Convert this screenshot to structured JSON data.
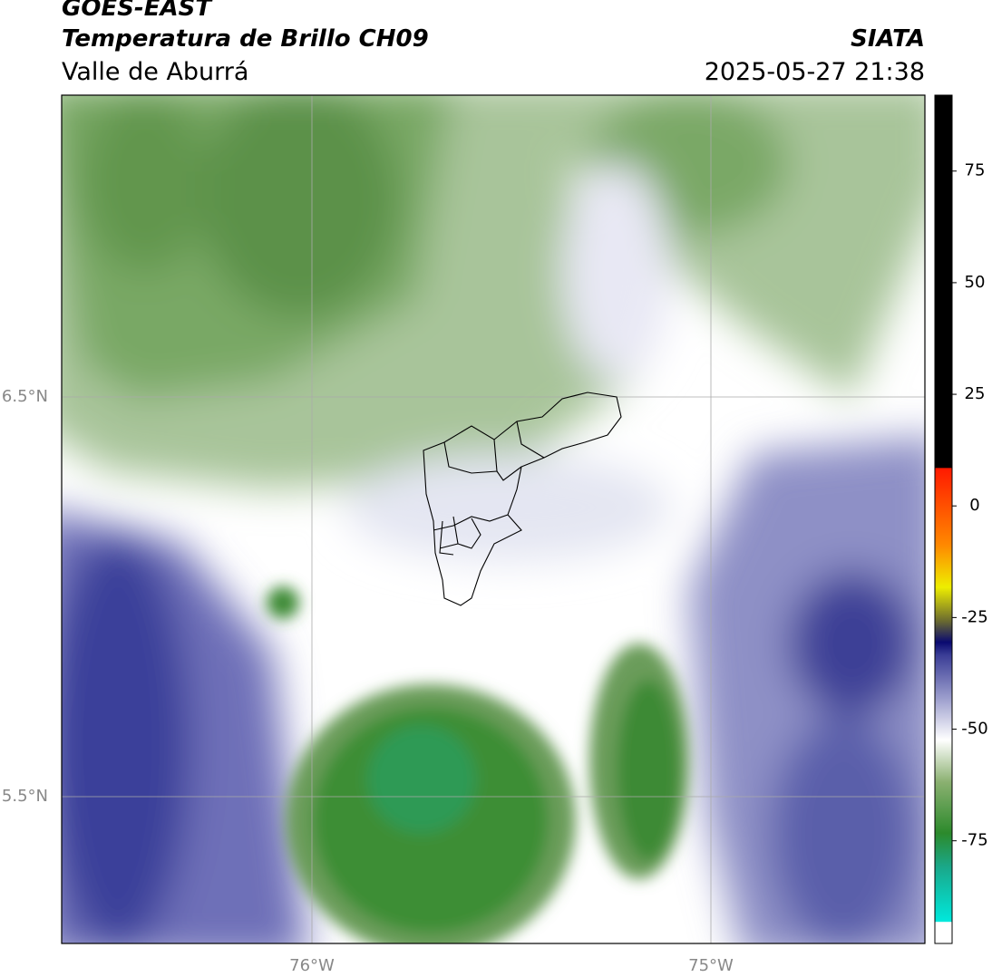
{
  "header": {
    "title": "GOES-EAST",
    "subtitle": "Temperatura de Brillo CH09",
    "region": "Valle de Aburrá",
    "source": "SIATA",
    "datetime": "2025-05-27 21:38"
  },
  "map": {
    "lat_labels": [
      "6.5°N",
      "5.5°N"
    ],
    "lon_labels": [
      "76°W",
      "75°W"
    ]
  },
  "colorbar": {
    "lim": [
      -98,
      92
    ],
    "ticks": [
      75,
      50,
      25,
      0,
      -25,
      -50,
      -75
    ]
  }
}
